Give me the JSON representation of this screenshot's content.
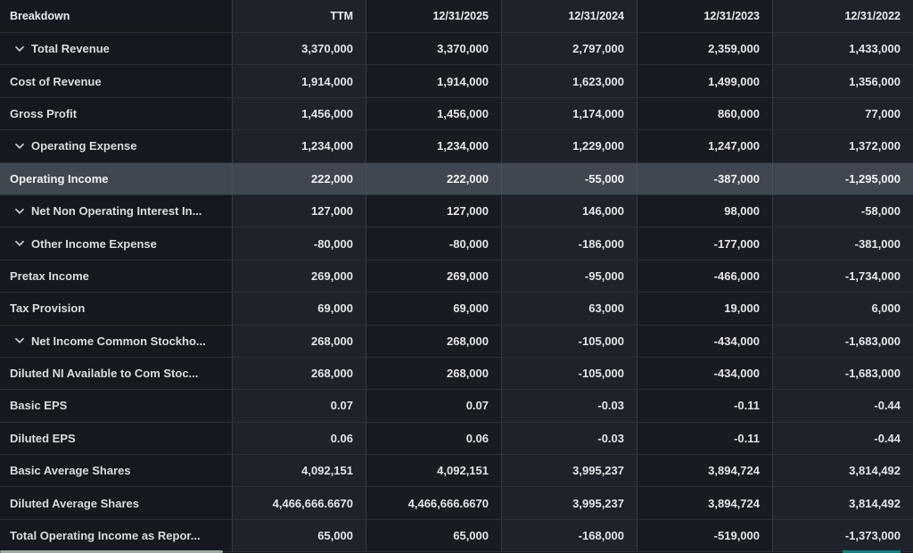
{
  "table": {
    "header": {
      "breakdown_label": "Breakdown",
      "columns": [
        "TTM",
        "12/31/2025",
        "12/31/2024",
        "12/31/2023",
        "12/31/2022"
      ]
    },
    "rows": [
      {
        "label": "Total Revenue",
        "expandable": true,
        "highlighted": false,
        "values": [
          "3,370,000",
          "3,370,000",
          "2,797,000",
          "2,359,000",
          "1,433,000"
        ]
      },
      {
        "label": "Cost of Revenue",
        "expandable": false,
        "highlighted": false,
        "values": [
          "1,914,000",
          "1,914,000",
          "1,623,000",
          "1,499,000",
          "1,356,000"
        ]
      },
      {
        "label": "Gross Profit",
        "expandable": false,
        "highlighted": false,
        "values": [
          "1,456,000",
          "1,456,000",
          "1,174,000",
          "860,000",
          "77,000"
        ]
      },
      {
        "label": "Operating Expense",
        "expandable": true,
        "highlighted": false,
        "values": [
          "1,234,000",
          "1,234,000",
          "1,229,000",
          "1,247,000",
          "1,372,000"
        ]
      },
      {
        "label": "Operating Income",
        "expandable": false,
        "highlighted": true,
        "values": [
          "222,000",
          "222,000",
          "-55,000",
          "-387,000",
          "-1,295,000"
        ]
      },
      {
        "label": "Net Non Operating Interest In...",
        "expandable": true,
        "highlighted": false,
        "values": [
          "127,000",
          "127,000",
          "146,000",
          "98,000",
          "-58,000"
        ]
      },
      {
        "label": "Other Income Expense",
        "expandable": true,
        "highlighted": false,
        "values": [
          "-80,000",
          "-80,000",
          "-186,000",
          "-177,000",
          "-381,000"
        ]
      },
      {
        "label": "Pretax Income",
        "expandable": false,
        "highlighted": false,
        "values": [
          "269,000",
          "269,000",
          "-95,000",
          "-466,000",
          "-1,734,000"
        ]
      },
      {
        "label": "Tax Provision",
        "expandable": false,
        "highlighted": false,
        "values": [
          "69,000",
          "69,000",
          "63,000",
          "19,000",
          "6,000"
        ]
      },
      {
        "label": "Net Income Common Stockho...",
        "expandable": true,
        "highlighted": false,
        "values": [
          "268,000",
          "268,000",
          "-105,000",
          "-434,000",
          "-1,683,000"
        ]
      },
      {
        "label": "Diluted NI Available to Com Stoc...",
        "expandable": false,
        "highlighted": false,
        "values": [
          "268,000",
          "268,000",
          "-105,000",
          "-434,000",
          "-1,683,000"
        ]
      },
      {
        "label": "Basic EPS",
        "expandable": false,
        "highlighted": false,
        "values": [
          "0.07",
          "0.07",
          "-0.03",
          "-0.11",
          "-0.44"
        ]
      },
      {
        "label": "Diluted EPS",
        "expandable": false,
        "highlighted": false,
        "values": [
          "0.06",
          "0.06",
          "-0.03",
          "-0.11",
          "-0.44"
        ]
      },
      {
        "label": "Basic Average Shares",
        "expandable": false,
        "highlighted": false,
        "values": [
          "4,092,151",
          "4,092,151",
          "3,995,237",
          "3,894,724",
          "3,814,492"
        ]
      },
      {
        "label": "Diluted Average Shares",
        "expandable": false,
        "highlighted": false,
        "values": [
          "4,466,666.6670",
          "4,466,666.6670",
          "3,995,237",
          "3,894,724",
          "3,814,492"
        ]
      },
      {
        "label": "Total Operating Income as Repor...",
        "expandable": false,
        "highlighted": false,
        "values": [
          "65,000",
          "65,000",
          "-168,000",
          "-519,000",
          "-1,373,000"
        ]
      }
    ]
  },
  "colors": {
    "row_highlight": "#404750",
    "scrollbar_thumb": "#9fa9a4",
    "teal_indicator": "#177c7f"
  }
}
